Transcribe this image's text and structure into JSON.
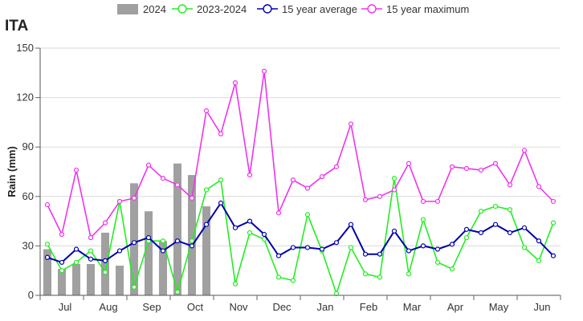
{
  "chart_data": {
    "type": "bar+line",
    "title": "ITA",
    "ylabel": "Rain (mm)",
    "ylim": [
      0,
      150
    ],
    "yticks": [
      "0",
      "30",
      "60",
      "90",
      "120",
      "150"
    ],
    "months": [
      "Jul",
      "Aug",
      "Sep",
      "Oct",
      "Nov",
      "Dec",
      "Jan",
      "Feb",
      "Mar",
      "Apr",
      "May",
      "Jun"
    ],
    "dekads_per_month": 3,
    "grid": "horizontal",
    "legend_position": "top",
    "bar_series": {
      "name": "2024",
      "color": "#a0a0a0",
      "values": [
        28,
        16,
        19,
        19,
        38,
        18,
        68,
        51,
        33,
        80,
        73,
        54
      ]
    },
    "line_series": [
      {
        "name": "2023-2024",
        "color": "#22ee22",
        "values": [
          31,
          15,
          20,
          27,
          14,
          57,
          5,
          33,
          33,
          2,
          33,
          64,
          70,
          7,
          38,
          34,
          11,
          9,
          49,
          27,
          1,
          29,
          13,
          11,
          71,
          13,
          46,
          20,
          16,
          35,
          51,
          54,
          52,
          29,
          21,
          44
        ]
      },
      {
        "name": "15 year average",
        "color": "#0000aa",
        "values": [
          23,
          20,
          28,
          22,
          21,
          27,
          32,
          35,
          27,
          33,
          30,
          43,
          56,
          41,
          45,
          37,
          24,
          29,
          29,
          28,
          32,
          43,
          25,
          25,
          39,
          27,
          30,
          28,
          31,
          40,
          38,
          43,
          38,
          41,
          33,
          24
        ]
      },
      {
        "name": "15 year maximum",
        "color": "#ee33ee",
        "values": [
          55,
          37,
          76,
          35,
          44,
          57,
          59,
          79,
          71,
          67,
          59,
          112,
          98,
          129,
          73,
          136,
          50,
          70,
          65,
          72,
          78,
          104,
          58,
          60,
          64,
          80,
          57,
          57,
          78,
          77,
          76,
          80,
          67,
          88,
          66,
          57
        ]
      }
    ]
  }
}
